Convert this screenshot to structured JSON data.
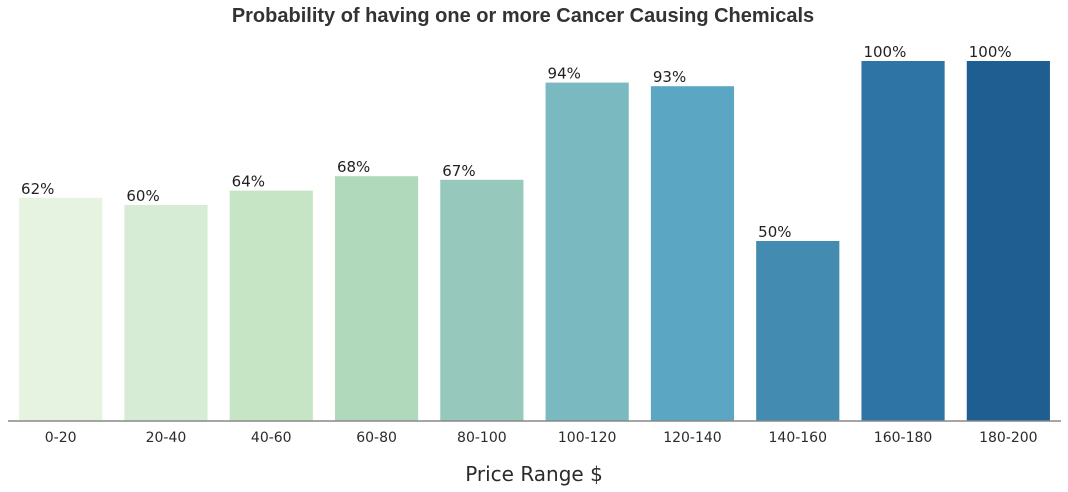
{
  "chart_data": {
    "type": "bar",
    "title": "Probability of having one or more Cancer Causing Chemicals",
    "xlabel": "Price Range $",
    "ylabel": "",
    "categories": [
      "0-20",
      "20-40",
      "40-60",
      "60-80",
      "80-100",
      "100-120",
      "120-140",
      "140-160",
      "160-180",
      "180-200"
    ],
    "values": [
      62,
      60,
      64,
      68,
      67,
      94,
      93,
      50,
      100,
      100
    ],
    "data_labels": [
      "62%",
      "60%",
      "64%",
      "68%",
      "67%",
      "94%",
      "93%",
      "50%",
      "100%",
      "100%"
    ],
    "ylim": [
      0,
      100
    ],
    "grid": false,
    "legend": "none",
    "colors": [
      "#e6f3e1",
      "#d6ecd4",
      "#c6e5c4",
      "#b0d9bc",
      "#96c9bb",
      "#7ab9c0",
      "#5ba6c2",
      "#438bb1",
      "#2e75a6",
      "#1e5e90"
    ],
    "axis_color": "#888888"
  }
}
